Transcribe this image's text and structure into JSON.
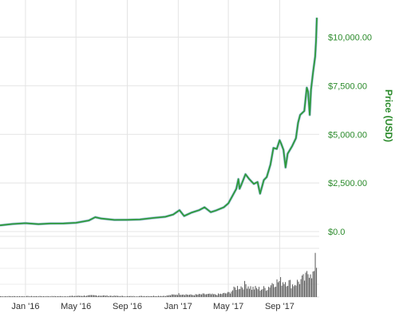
{
  "chart_data": {
    "type": "line",
    "ylabel": "Price (USD)",
    "y_ticks": [
      "$0.0",
      "$2,500.00",
      "$5,000.00",
      "$7,500.00",
      "$10,000.00"
    ],
    "y_tick_values": [
      0,
      2500,
      5000,
      7500,
      10000
    ],
    "ylim": [
      0,
      11500
    ],
    "x_ticks": [
      "Jan '16",
      "May '16",
      "Sep '16",
      "Jan '17",
      "May '17",
      "Sep '17"
    ],
    "x_tick_values": [
      "2016-01-01",
      "2016-05-01",
      "2016-09-01",
      "2017-01-01",
      "2017-05-01",
      "2017-09-01"
    ],
    "xlim": [
      "2015-11-01",
      "2017-11-29"
    ],
    "grid": true,
    "series": [
      {
        "color": "#2e9a3a",
        "points": [
          [
            "2015-11-01",
            320
          ],
          [
            "2015-12-01",
            390
          ],
          [
            "2016-01-01",
            430
          ],
          [
            "2016-02-01",
            380
          ],
          [
            "2016-03-01",
            415
          ],
          [
            "2016-04-01",
            420
          ],
          [
            "2016-05-01",
            450
          ],
          [
            "2016-06-01",
            570
          ],
          [
            "2016-06-16",
            740
          ],
          [
            "2016-07-01",
            670
          ],
          [
            "2016-08-01",
            600
          ],
          [
            "2016-09-01",
            605
          ],
          [
            "2016-10-01",
            620
          ],
          [
            "2016-11-01",
            700
          ],
          [
            "2016-12-01",
            760
          ],
          [
            "2016-12-20",
            880
          ],
          [
            "2017-01-04",
            1100
          ],
          [
            "2017-01-15",
            800
          ],
          [
            "2017-02-01",
            970
          ],
          [
            "2017-02-20",
            1100
          ],
          [
            "2017-03-05",
            1250
          ],
          [
            "2017-03-20",
            1000
          ],
          [
            "2017-04-01",
            1080
          ],
          [
            "2017-04-20",
            1250
          ],
          [
            "2017-05-01",
            1450
          ],
          [
            "2017-05-10",
            1800
          ],
          [
            "2017-05-20",
            2200
          ],
          [
            "2017-05-25",
            2700
          ],
          [
            "2017-05-28",
            2200
          ],
          [
            "2017-06-01",
            2400
          ],
          [
            "2017-06-11",
            2950
          ],
          [
            "2017-06-20",
            2700
          ],
          [
            "2017-07-01",
            2450
          ],
          [
            "2017-07-10",
            2550
          ],
          [
            "2017-07-16",
            1950
          ],
          [
            "2017-07-25",
            2650
          ],
          [
            "2017-08-01",
            2800
          ],
          [
            "2017-08-10",
            3450
          ],
          [
            "2017-08-17",
            4300
          ],
          [
            "2017-08-25",
            4250
          ],
          [
            "2017-09-01",
            4700
          ],
          [
            "2017-09-05",
            4500
          ],
          [
            "2017-09-10",
            4200
          ],
          [
            "2017-09-15",
            3300
          ],
          [
            "2017-09-20",
            4000
          ],
          [
            "2017-10-01",
            4400
          ],
          [
            "2017-10-10",
            4800
          ],
          [
            "2017-10-15",
            5600
          ],
          [
            "2017-10-20",
            6000
          ],
          [
            "2017-10-30",
            6200
          ],
          [
            "2017-11-05",
            7400
          ],
          [
            "2017-11-08",
            7200
          ],
          [
            "2017-11-12",
            6000
          ],
          [
            "2017-11-15",
            7300
          ],
          [
            "2017-11-20",
            8200
          ],
          [
            "2017-11-25",
            9000
          ],
          [
            "2017-11-27",
            9800
          ],
          [
            "2017-11-29",
            11000
          ]
        ]
      }
    ],
    "volume": {
      "color": "#666666",
      "values": [
        [
          "2015-11-01",
          0.02
        ],
        [
          "2016-01-01",
          0.02
        ],
        [
          "2016-04-01",
          0.02
        ],
        [
          "2016-06-15",
          0.04
        ],
        [
          "2016-09-01",
          0.02
        ],
        [
          "2016-12-01",
          0.03
        ],
        [
          "2017-01-05",
          0.08
        ],
        [
          "2017-02-01",
          0.05
        ],
        [
          "2017-03-05",
          0.07
        ],
        [
          "2017-04-01",
          0.06
        ],
        [
          "2017-05-01",
          0.1
        ],
        [
          "2017-05-20",
          0.24
        ],
        [
          "2017-06-01",
          0.26
        ],
        [
          "2017-06-12",
          0.32
        ],
        [
          "2017-06-25",
          0.22
        ],
        [
          "2017-07-16",
          0.2
        ],
        [
          "2017-08-01",
          0.22
        ],
        [
          "2017-08-15",
          0.36
        ],
        [
          "2017-09-01",
          0.38
        ],
        [
          "2017-09-15",
          0.4
        ],
        [
          "2017-10-01",
          0.3
        ],
        [
          "2017-10-15",
          0.38
        ],
        [
          "2017-11-01",
          0.45
        ],
        [
          "2017-11-12",
          0.72
        ],
        [
          "2017-11-20",
          0.5
        ],
        [
          "2017-11-26",
          0.95
        ],
        [
          "2017-11-29",
          0.68
        ]
      ]
    }
  }
}
